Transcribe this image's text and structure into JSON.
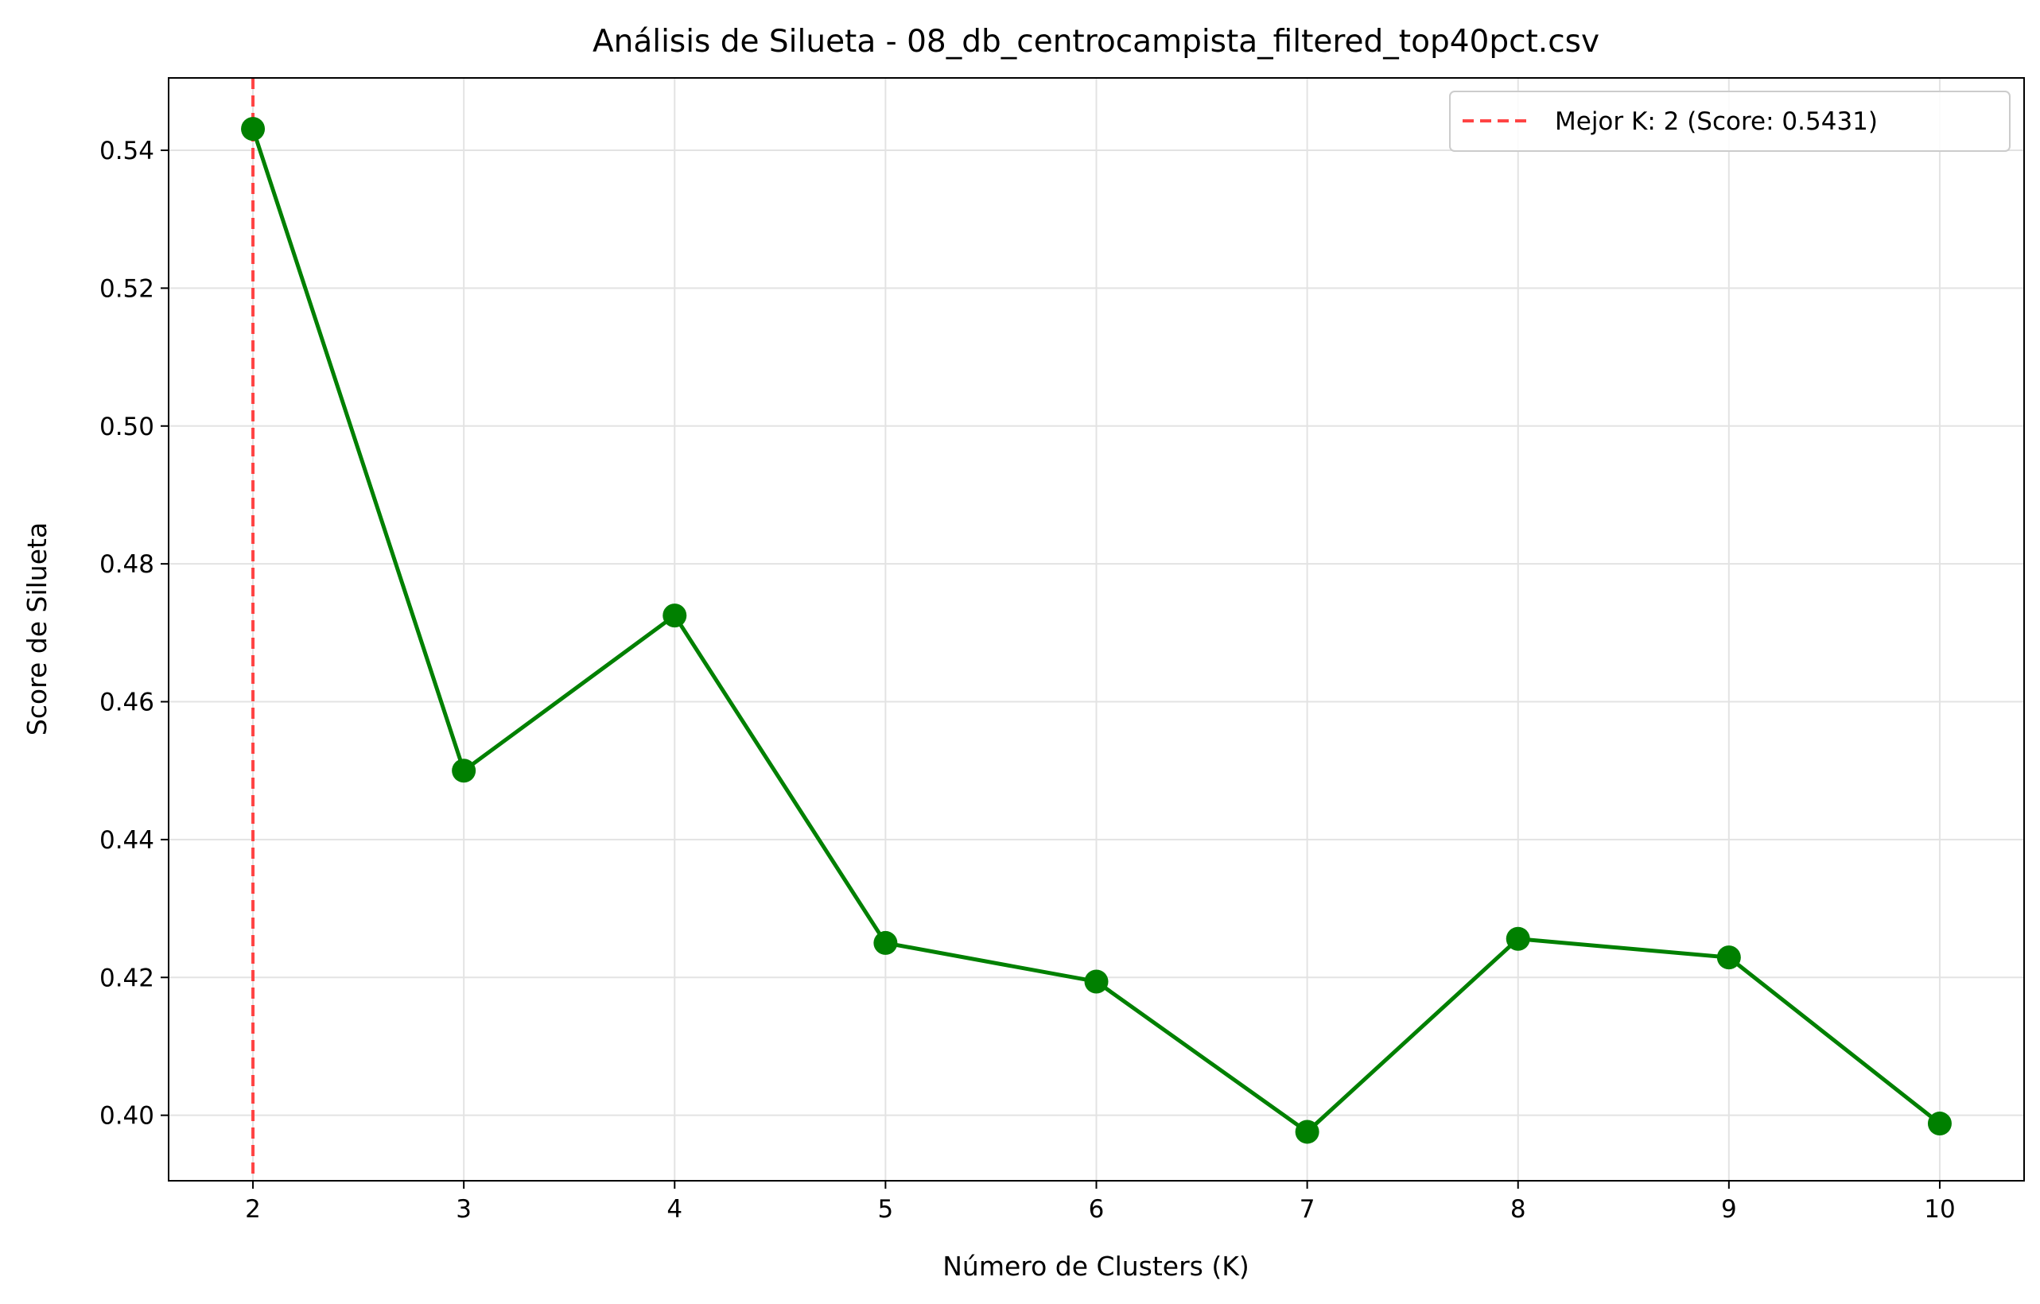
{
  "chart_data": {
    "type": "line",
    "title": "Análisis de Silueta - 08_db_centrocampista_filtered_top40pct.csv",
    "xlabel": "Número de Clusters (K)",
    "ylabel": "Score de Silueta",
    "x": [
      2,
      3,
      4,
      5,
      6,
      7,
      8,
      9,
      10
    ],
    "series": [
      {
        "values": [
          0.5431,
          0.45,
          0.4725,
          0.425,
          0.4194,
          0.3976,
          0.4256,
          0.4229,
          0.3988
        ],
        "color": "#008000",
        "marker": "circle"
      }
    ],
    "xlim": [
      1.6,
      10.4
    ],
    "ylim": [
      0.3905,
      0.5505
    ],
    "xticks": [
      "2",
      "3",
      "4",
      "5",
      "6",
      "7",
      "8",
      "9",
      "10"
    ],
    "yticks": [
      "0.40",
      "0.42",
      "0.44",
      "0.46",
      "0.48",
      "0.50",
      "0.52",
      "0.54"
    ],
    "grid": true,
    "reference_line": {
      "orientation": "vertical",
      "x": 2,
      "style": "dashed",
      "color": "#ff4444",
      "label": "Mejor K: 2 (Score: 0.5431)"
    },
    "legend": {
      "position": "top-right",
      "entries": [
        "Mejor K: 2 (Score: 0.5431)"
      ]
    }
  }
}
